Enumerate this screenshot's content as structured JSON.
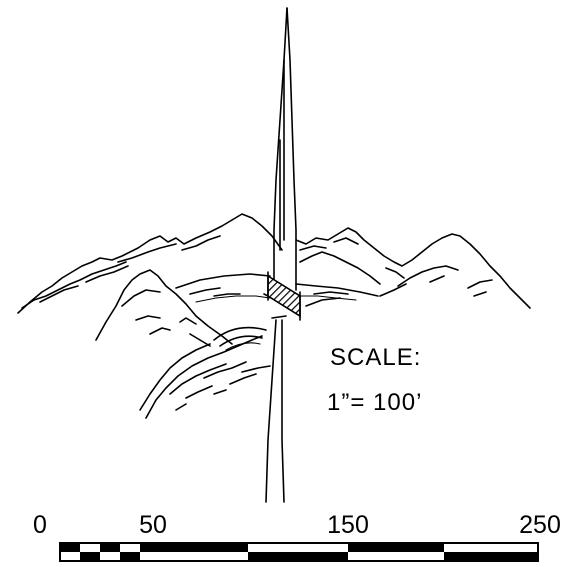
{
  "note": {
    "title": "SCALE:",
    "ratio": "1”=  100’"
  },
  "scale_bar": {
    "ticks": [
      "0",
      "50",
      "150",
      "250"
    ]
  }
}
